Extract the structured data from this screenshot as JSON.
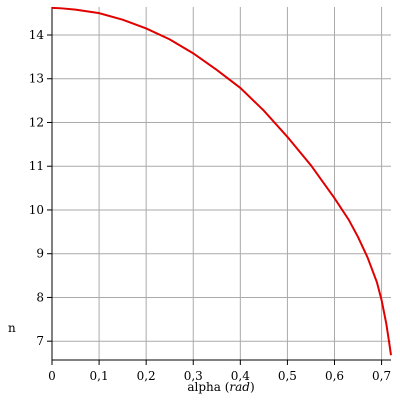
{
  "chart_data": {
    "type": "line",
    "y_label": "n",
    "x_label": [
      "alpha (",
      "rad",
      ")"
    ],
    "xlim": [
      0,
      0.72
    ],
    "ylim": [
      6.57,
      14.64
    ],
    "xticks": [
      0,
      {
        "value": 0.1,
        "label": "0,1"
      },
      {
        "value": 0.2,
        "label": "0,2"
      },
      {
        "value": 0.3,
        "label": "0,3"
      },
      {
        "value": 0.4,
        "label": "0,4"
      },
      {
        "value": 0.5,
        "label": "0,5"
      },
      {
        "value": 0.6,
        "label": "0,6"
      },
      {
        "value": 0.7,
        "label": "0,7"
      }
    ],
    "yticks": [
      7,
      8,
      9,
      10,
      11,
      12,
      13,
      14
    ],
    "grid": true,
    "series": [
      {
        "color": "#e00000",
        "x": [
          0,
          0.02,
          0.05,
          0.1,
          0.15,
          0.2,
          0.25,
          0.3,
          0.35,
          0.4,
          0.45,
          0.5,
          0.55,
          0.6,
          0.63,
          0.65,
          0.67,
          0.69,
          0.7,
          0.71,
          0.715,
          0.72
        ],
        "values": [
          14.62,
          14.61,
          14.58,
          14.5,
          14.35,
          14.15,
          13.9,
          13.58,
          13.2,
          12.79,
          12.27,
          11.67,
          11.02,
          10.27,
          9.78,
          9.38,
          8.92,
          8.35,
          7.94,
          7.4,
          7.05,
          6.68
        ]
      }
    ]
  }
}
